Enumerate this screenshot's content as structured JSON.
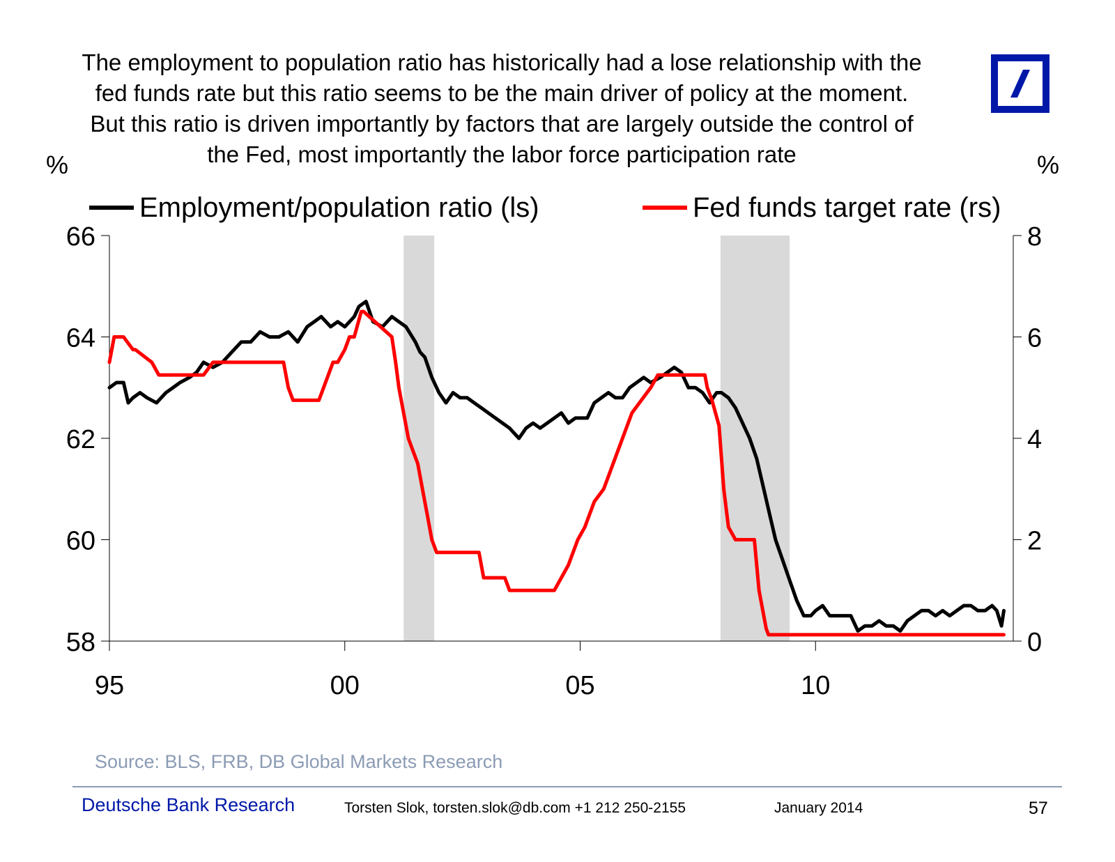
{
  "slide": {
    "title_lines": [
      "The employment to population ratio has historically had a lose relationship with the",
      "fed funds rate but this ratio seems to be the main driver of policy at the moment.",
      "But this ratio is driven importantly by factors that are largely outside the control of",
      "the Fed, most importantly the labor force participation rate"
    ],
    "source": "Source: BLS, FRB, DB Global Markets Research",
    "footer": {
      "brand": "Deutsche Bank Research",
      "contact": "Torsten Slok, torsten.slok@db.com  +1 212 250-2155",
      "date": "January  2014",
      "page": "57"
    },
    "logo": "deutsche-bank-logo"
  },
  "chart_data": {
    "type": "line",
    "title": "",
    "left_unit": "%",
    "right_unit": "%",
    "x_ticks": [
      {
        "value": 1995,
        "label": "95"
      },
      {
        "value": 2000,
        "label": "00"
      },
      {
        "value": 2005,
        "label": "05"
      },
      {
        "value": 2010,
        "label": "10"
      }
    ],
    "xlim": [
      1995,
      2014.2
    ],
    "y_left": {
      "lim": [
        58,
        66
      ],
      "ticks": [
        58,
        60,
        62,
        64,
        66
      ]
    },
    "y_right": {
      "lim": [
        0,
        8
      ],
      "ticks": [
        0,
        2,
        4,
        6,
        8
      ]
    },
    "recessions": [
      [
        2001.25,
        2001.9
      ],
      [
        2007.98,
        2009.45
      ]
    ],
    "colors": {
      "employment": "#000000",
      "fedfunds": "#ff0000",
      "recession": "#d9d9d9"
    },
    "series": [
      {
        "name": "Employment/population ratio (ls)",
        "axis": "left",
        "key": "employment",
        "x": [
          1995.0,
          1995.15,
          1995.3,
          1995.4,
          1995.5,
          1995.65,
          1995.8,
          1996.0,
          1996.2,
          1996.35,
          1996.5,
          1996.7,
          1996.85,
          1997.0,
          1997.2,
          1997.4,
          1997.6,
          1997.8,
          1998.0,
          1998.2,
          1998.4,
          1998.6,
          1998.8,
          1999.0,
          1999.2,
          1999.35,
          1999.5,
          1999.7,
          1999.85,
          2000.0,
          2000.2,
          2000.3,
          2000.45,
          2000.6,
          2000.8,
          2001.0,
          2001.15,
          2001.3,
          2001.5,
          2001.6,
          2001.7,
          2001.85,
          2002.0,
          2002.15,
          2002.3,
          2002.45,
          2002.6,
          2002.75,
          2002.9,
          2003.05,
          2003.2,
          2003.35,
          2003.5,
          2003.6,
          2003.7,
          2003.85,
          2004.0,
          2004.15,
          2004.3,
          2004.45,
          2004.6,
          2004.75,
          2004.9,
          2005.0,
          2005.15,
          2005.3,
          2005.45,
          2005.6,
          2005.75,
          2005.9,
          2006.05,
          2006.2,
          2006.35,
          2006.5,
          2006.7,
          2006.85,
          2007.0,
          2007.15,
          2007.3,
          2007.45,
          2007.6,
          2007.75,
          2007.9,
          2008.0,
          2008.15,
          2008.3,
          2008.45,
          2008.6,
          2008.75,
          2008.9,
          2009.0,
          2009.15,
          2009.3,
          2009.45,
          2009.6,
          2009.75,
          2009.9,
          2010.0,
          2010.15,
          2010.3,
          2010.45,
          2010.6,
          2010.75,
          2010.9,
          2011.05,
          2011.2,
          2011.35,
          2011.5,
          2011.65,
          2011.8,
          2011.95,
          2012.1,
          2012.25,
          2012.4,
          2012.55,
          2012.7,
          2012.85,
          2013.0,
          2013.15,
          2013.3,
          2013.45,
          2013.6,
          2013.75,
          2013.85,
          2013.95,
          2014.0
        ],
        "values": [
          63.0,
          63.1,
          63.1,
          62.7,
          62.8,
          62.9,
          62.8,
          62.7,
          62.9,
          63.0,
          63.1,
          63.2,
          63.3,
          63.5,
          63.4,
          63.5,
          63.7,
          63.9,
          63.9,
          64.1,
          64.0,
          64.0,
          64.1,
          63.9,
          64.2,
          64.3,
          64.4,
          64.2,
          64.3,
          64.2,
          64.4,
          64.6,
          64.7,
          64.3,
          64.2,
          64.4,
          64.3,
          64.2,
          63.9,
          63.7,
          63.6,
          63.2,
          62.9,
          62.7,
          62.9,
          62.8,
          62.8,
          62.7,
          62.6,
          62.5,
          62.4,
          62.3,
          62.2,
          62.1,
          62.0,
          62.2,
          62.3,
          62.2,
          62.3,
          62.4,
          62.5,
          62.3,
          62.4,
          62.4,
          62.4,
          62.7,
          62.8,
          62.9,
          62.8,
          62.8,
          63.0,
          63.1,
          63.2,
          63.1,
          63.2,
          63.3,
          63.4,
          63.3,
          63.0,
          63.0,
          62.9,
          62.7,
          62.9,
          62.9,
          62.8,
          62.6,
          62.3,
          62.0,
          61.6,
          61.0,
          60.6,
          60.0,
          59.6,
          59.2,
          58.8,
          58.5,
          58.5,
          58.6,
          58.7,
          58.5,
          58.5,
          58.5,
          58.5,
          58.2,
          58.3,
          58.3,
          58.4,
          58.3,
          58.3,
          58.2,
          58.4,
          58.5,
          58.6,
          58.6,
          58.5,
          58.6,
          58.5,
          58.6,
          58.7,
          58.7,
          58.6,
          58.6,
          58.7,
          58.6,
          58.3,
          58.6
        ],
        "label": "Employment/population ratio (ls)"
      },
      {
        "name": "Fed funds target rate (rs)",
        "axis": "right",
        "key": "fedfunds",
        "x": [
          1995.0,
          1995.1,
          1995.3,
          1995.5,
          1995.55,
          1995.9,
          1996.05,
          1996.1,
          1997.0,
          1997.2,
          1997.25,
          1998.7,
          1998.8,
          1998.9,
          1999.0,
          1999.45,
          1999.55,
          1999.65,
          1999.75,
          1999.85,
          2000.0,
          2000.1,
          2000.2,
          2000.35,
          2000.4,
          2001.0,
          2001.08,
          2001.15,
          2001.25,
          2001.35,
          2001.45,
          2001.55,
          2001.65,
          2001.75,
          2001.85,
          2001.95,
          2002.0,
          2002.85,
          2002.95,
          2003.4,
          2003.5,
          2004.45,
          2004.6,
          2004.75,
          2004.95,
          2005.1,
          2005.3,
          2005.5,
          2005.7,
          2005.9,
          2006.1,
          2006.3,
          2006.5,
          2006.65,
          2007.65,
          2007.7,
          2007.8,
          2007.95,
          2008.05,
          2008.15,
          2008.3,
          2008.4,
          2008.7,
          2008.8,
          2008.95,
          2009.0,
          2014.0
        ],
        "values": [
          5.5,
          6.0,
          6.0,
          5.75,
          5.75,
          5.5,
          5.25,
          5.25,
          5.25,
          5.5,
          5.5,
          5.5,
          5.0,
          4.75,
          4.75,
          4.75,
          5.0,
          5.25,
          5.5,
          5.5,
          5.75,
          6.0,
          6.0,
          6.5,
          6.5,
          6.0,
          5.5,
          5.0,
          4.5,
          4.0,
          3.75,
          3.5,
          3.0,
          2.5,
          2.0,
          1.75,
          1.75,
          1.75,
          1.25,
          1.25,
          1.0,
          1.0,
          1.25,
          1.5,
          2.0,
          2.25,
          2.75,
          3.0,
          3.5,
          4.0,
          4.5,
          4.75,
          5.0,
          5.25,
          5.25,
          5.0,
          4.75,
          4.25,
          3.0,
          2.25,
          2.0,
          2.0,
          2.0,
          1.0,
          0.25,
          0.125,
          0.125
        ],
        "label": "Fed funds target rate (rs)"
      }
    ]
  }
}
